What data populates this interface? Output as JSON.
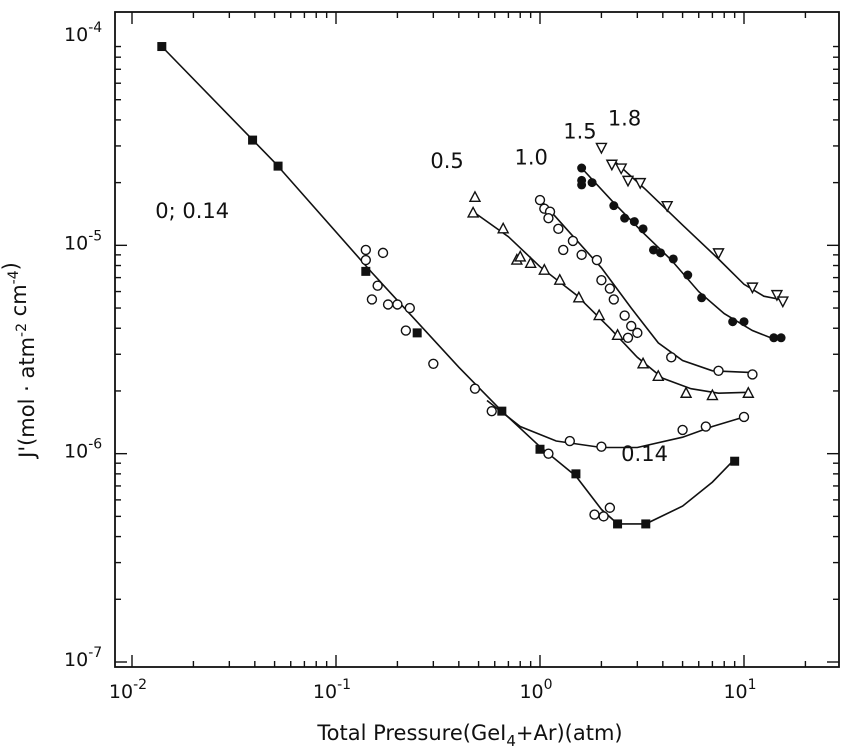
{
  "chart_data": {
    "type": "scatter",
    "x_scale": "log",
    "y_scale": "log",
    "xlim": [
      0.01,
      30
    ],
    "ylim": [
      1e-07,
      0.0001
    ],
    "xlabel": "Total Pressure(GeI4+Ar)(atm)",
    "ylabel": "J'(mol · atm-2 cm-4)",
    "x_ticks": [
      {
        "value": 0.01,
        "base": "10",
        "exp": "-2"
      },
      {
        "value": 0.1,
        "base": "10",
        "exp": "-1"
      },
      {
        "value": 1,
        "base": "10",
        "exp": "0"
      },
      {
        "value": 10,
        "base": "10",
        "exp": "1"
      }
    ],
    "y_ticks": [
      {
        "value": 0.0001,
        "base": "10",
        "exp": "-4"
      },
      {
        "value": 1e-05,
        "base": "10",
        "exp": "-5"
      },
      {
        "value": 1e-06,
        "base": "10",
        "exp": "-6"
      },
      {
        "value": 1e-07,
        "base": "10",
        "exp": "-7"
      }
    ],
    "annotations": [
      {
        "text": "0; 0.14",
        "x": 0.013,
        "y": 1.35e-05
      },
      {
        "text": "0.14",
        "x": 2.5,
        "y": 9.2e-07
      },
      {
        "text": "0.5",
        "x": 0.29,
        "y": 2.35e-05
      },
      {
        "text": "1.0",
        "x": 0.75,
        "y": 2.45e-05
      },
      {
        "text": "1.5",
        "x": 1.3,
        "y": 3.25e-05
      },
      {
        "text": "1.8",
        "x": 2.15,
        "y": 3.75e-05
      }
    ],
    "series": [
      {
        "marker": "filled-square",
        "points": [
          [
            0.014,
            9e-05
          ],
          [
            0.039,
            3.2e-05
          ],
          [
            0.052,
            2.4e-05
          ],
          [
            0.14,
            7.5e-06
          ],
          [
            0.25,
            3.8e-06
          ],
          [
            0.65,
            1.6e-06
          ],
          [
            1.0,
            1.05e-06
          ],
          [
            1.5,
            8e-07
          ],
          [
            2.4,
            4.6e-07
          ],
          [
            3.3,
            4.6e-07
          ],
          [
            9.0,
            9.2e-07
          ]
        ],
        "curve": [
          [
            0.014,
            9e-05
          ],
          [
            0.05,
            2.5e-05
          ],
          [
            0.15,
            7.4e-06
          ],
          [
            0.4,
            2.6e-06
          ],
          [
            0.65,
            1.6e-06
          ],
          [
            1.0,
            1.08e-06
          ],
          [
            1.5,
            7.8e-07
          ],
          [
            2.0,
            5.4e-07
          ],
          [
            2.4,
            4.6e-07
          ],
          [
            3.3,
            4.6e-07
          ],
          [
            5.0,
            5.6e-07
          ],
          [
            7.0,
            7.3e-07
          ],
          [
            8.8,
            9.2e-07
          ]
        ]
      },
      {
        "marker": "open-circle",
        "points": [
          [
            0.14,
            9.5e-06
          ],
          [
            0.14,
            8.5e-06
          ],
          [
            0.17,
            9.2e-06
          ],
          [
            0.16,
            6.4e-06
          ],
          [
            0.15,
            5.5e-06
          ],
          [
            0.18,
            5.2e-06
          ],
          [
            0.2,
            5.2e-06
          ],
          [
            0.23,
            5e-06
          ],
          [
            0.22,
            3.9e-06
          ],
          [
            0.3,
            2.7e-06
          ],
          [
            0.48,
            2.05e-06
          ],
          [
            0.58,
            1.6e-06
          ],
          [
            1.1,
            1e-06
          ],
          [
            1.4,
            1.15e-06
          ],
          [
            2.0,
            1.08e-06
          ],
          [
            5.0,
            1.3e-06
          ],
          [
            6.5,
            1.35e-06
          ],
          [
            10.0,
            1.5e-06
          ],
          [
            1.85,
            5.1e-07
          ],
          [
            2.05,
            5e-07
          ],
          [
            2.2,
            5.5e-07
          ]
        ],
        "curve": [
          [
            0.55,
            1.8e-06
          ],
          [
            0.8,
            1.35e-06
          ],
          [
            1.2,
            1.15e-06
          ],
          [
            2.0,
            1.07e-06
          ],
          [
            3.0,
            1.07e-06
          ],
          [
            5.0,
            1.2e-06
          ],
          [
            7.0,
            1.35e-06
          ],
          [
            10.0,
            1.5e-06
          ]
        ]
      },
      {
        "marker": "open-triangle",
        "points": [
          [
            0.48,
            1.7e-05
          ],
          [
            0.47,
            1.43e-05
          ],
          [
            0.66,
            1.2e-05
          ],
          [
            0.77,
            8.5e-06
          ],
          [
            0.8,
            8.8e-06
          ],
          [
            0.9,
            8.2e-06
          ],
          [
            1.05,
            7.6e-06
          ],
          [
            1.25,
            6.8e-06
          ],
          [
            1.55,
            5.6e-06
          ],
          [
            1.95,
            4.6e-06
          ],
          [
            2.4,
            3.7e-06
          ],
          [
            3.2,
            2.7e-06
          ],
          [
            3.8,
            2.35e-06
          ],
          [
            5.2,
            1.95e-06
          ],
          [
            7.0,
            1.9e-06
          ],
          [
            10.5,
            1.95e-06
          ]
        ],
        "curve": [
          [
            0.48,
            1.43e-05
          ],
          [
            0.7,
            1.1e-05
          ],
          [
            1.0,
            7.9e-06
          ],
          [
            1.5,
            5.8e-06
          ],
          [
            2.2,
            4e-06
          ],
          [
            3.0,
            2.9e-06
          ],
          [
            4.0,
            2.3e-06
          ],
          [
            5.5,
            2.05e-06
          ],
          [
            7.5,
            1.95e-06
          ],
          [
            10.5,
            1.97e-06
          ]
        ]
      },
      {
        "marker": "open-circle",
        "points": [
          [
            1.0,
            1.65e-05
          ],
          [
            1.05,
            1.5e-05
          ],
          [
            1.12,
            1.45e-05
          ],
          [
            1.1,
            1.35e-05
          ],
          [
            1.23,
            1.2e-05
          ],
          [
            1.3,
            9.5e-06
          ],
          [
            1.45,
            1.05e-05
          ],
          [
            1.6,
            9e-06
          ],
          [
            1.9,
            8.5e-06
          ],
          [
            2.0,
            6.8e-06
          ],
          [
            2.2,
            6.2e-06
          ],
          [
            2.3,
            5.5e-06
          ],
          [
            2.6,
            4.6e-06
          ],
          [
            2.8,
            4.1e-06
          ],
          [
            2.7,
            3.6e-06
          ],
          [
            3.0,
            3.8e-06
          ],
          [
            4.4,
            2.9e-06
          ],
          [
            7.5,
            2.5e-06
          ],
          [
            11.0,
            2.4e-06
          ]
        ],
        "curve": [
          [
            0.98,
            1.7e-05
          ],
          [
            1.4,
            1.15e-05
          ],
          [
            2.0,
            7.8e-06
          ],
          [
            2.8,
            5e-06
          ],
          [
            3.8,
            3.4e-06
          ],
          [
            5.0,
            2.8e-06
          ],
          [
            7.0,
            2.5e-06
          ],
          [
            11.0,
            2.45e-06
          ]
        ]
      },
      {
        "marker": "filled-circle",
        "points": [
          [
            1.6,
            2.35e-05
          ],
          [
            1.6,
            2.05e-05
          ],
          [
            1.6,
            1.95e-05
          ],
          [
            1.8,
            2e-05
          ],
          [
            2.3,
            1.55e-05
          ],
          [
            2.6,
            1.35e-05
          ],
          [
            2.9,
            1.3e-05
          ],
          [
            3.2,
            1.2e-05
          ],
          [
            3.6,
            9.5e-06
          ],
          [
            3.9,
            9.2e-06
          ],
          [
            4.5,
            8.6e-06
          ],
          [
            5.3,
            7.2e-06
          ],
          [
            6.2,
            5.6e-06
          ],
          [
            8.8,
            4.3e-06
          ],
          [
            10.0,
            4.3e-06
          ],
          [
            14.0,
            3.6e-06
          ],
          [
            15.2,
            3.6e-06
          ]
        ],
        "curve": [
          [
            1.6,
            2.35e-05
          ],
          [
            2.3,
            1.6e-05
          ],
          [
            3.2,
            1.15e-05
          ],
          [
            4.4,
            8.5e-06
          ],
          [
            6.0,
            6e-06
          ],
          [
            8.0,
            4.7e-06
          ],
          [
            11.0,
            3.9e-06
          ],
          [
            14.0,
            3.55e-06
          ]
        ]
      },
      {
        "marker": "open-down-triangle",
        "points": [
          [
            2.0,
            2.95e-05
          ],
          [
            2.25,
            2.45e-05
          ],
          [
            2.5,
            2.35e-05
          ],
          [
            2.7,
            2.05e-05
          ],
          [
            3.1,
            2e-05
          ],
          [
            4.2,
            1.55e-05
          ],
          [
            7.5,
            9.2e-06
          ],
          [
            11.0,
            6.3e-06
          ],
          [
            14.5,
            5.8e-06
          ],
          [
            15.5,
            5.4e-06
          ]
        ],
        "curve": [
          [
            2.3,
            2.55e-05
          ],
          [
            3.3,
            1.85e-05
          ],
          [
            5.0,
            1.25e-05
          ],
          [
            7.5,
            8.6e-06
          ],
          [
            10.0,
            6.5e-06
          ],
          [
            12.5,
            5.7e-06
          ],
          [
            15.0,
            5.5e-06
          ]
        ]
      }
    ]
  }
}
